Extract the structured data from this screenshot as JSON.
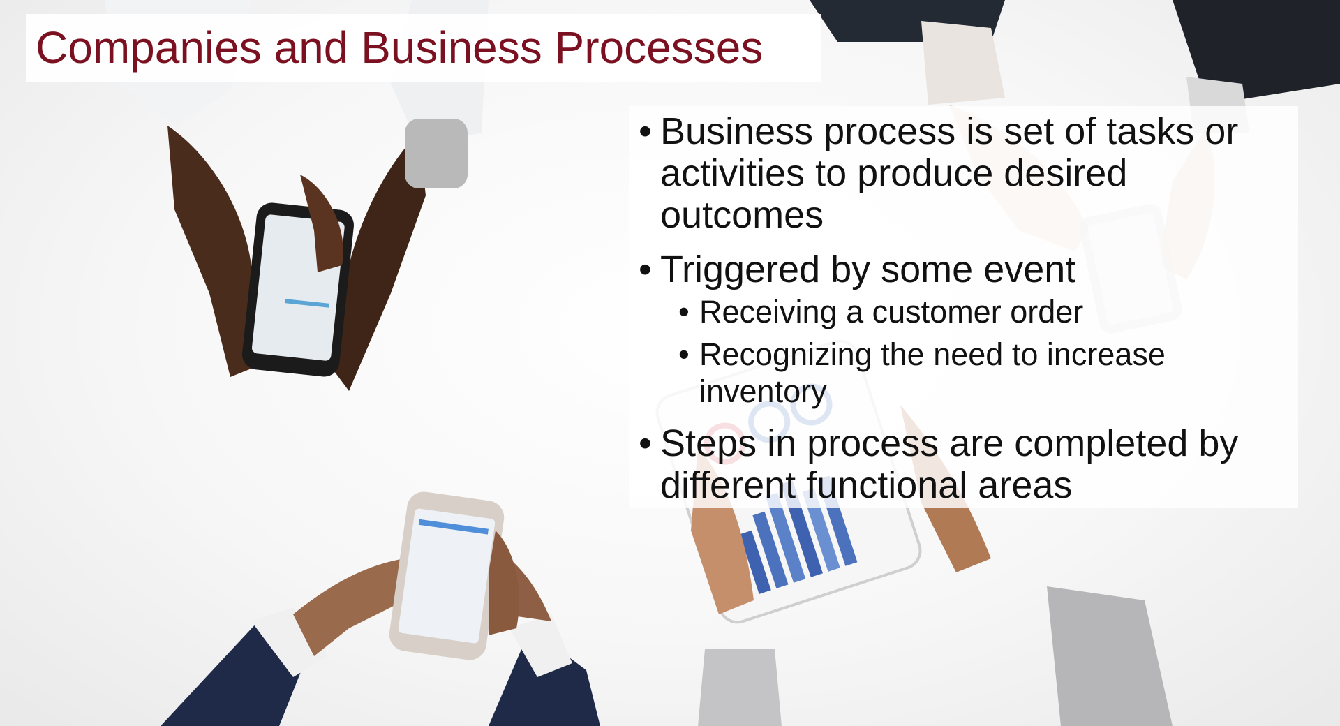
{
  "slide": {
    "title": "Companies and Business Processes",
    "bullet_char": "•",
    "bullets": [
      {
        "text": "Business process is set of tasks or activities to produce desired outcomes"
      },
      {
        "text": "Triggered by some event",
        "sub": [
          {
            "text": "Receiving a customer order"
          },
          {
            "text": "Recognizing the need to increase inventory"
          }
        ]
      },
      {
        "text": "Steps in process are completed by different functional areas"
      }
    ]
  },
  "colors": {
    "title": "#7a1020",
    "body_text": "#111111",
    "background": "#f4f4f4"
  },
  "background_image": {
    "icons": [
      "hands-holding-phone-icon",
      "hands-holding-phone-icon",
      "hands-holding-tablet-icon",
      "hands-holding-phone-icon"
    ]
  }
}
